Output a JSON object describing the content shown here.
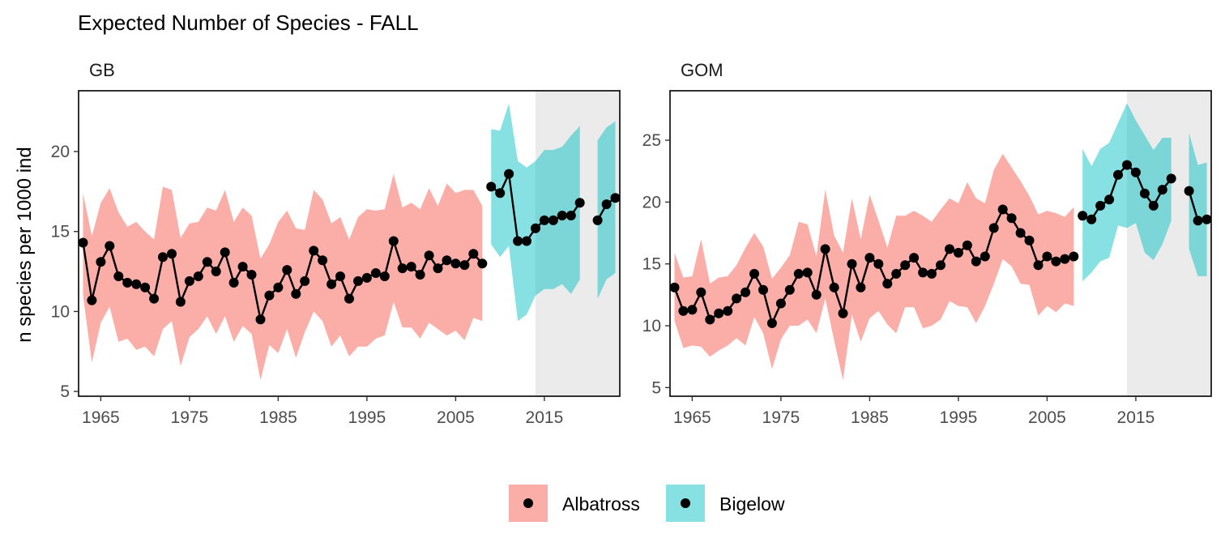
{
  "chart_data": {
    "type": "line",
    "title": "Expected Number of Species - FALL",
    "ylabel": "n species per 1000 ind",
    "xlabel": "",
    "legend": {
      "position": "bottom",
      "entries": [
        {
          "name": "Albatross",
          "color": "#F8766D"
        },
        {
          "name": "Bigelow",
          "color": "#00BFC4"
        }
      ]
    },
    "colors": {
      "Albatross": "#F8766D",
      "Bigelow": "#00BFC4",
      "line": "#000000",
      "shade": "#EBEBEB"
    },
    "panels": [
      {
        "name": "GB",
        "xlim": [
          1962.5,
          2023.5
        ],
        "ylim": [
          4.7,
          23.8
        ],
        "xticks": [
          1965,
          1975,
          1985,
          1995,
          2005,
          2015
        ],
        "yticks": [
          5,
          10,
          15,
          20
        ],
        "shaded_x": [
          2014,
          2023.5
        ],
        "segments": [
          {
            "series": "Albatross",
            "x": [
              1963,
              1964,
              1965,
              1966,
              1967,
              1968,
              1969,
              1970,
              1971,
              1972,
              1973,
              1974,
              1975,
              1976,
              1977,
              1978,
              1979,
              1980,
              1981,
              1982,
              1983,
              1984,
              1985,
              1986,
              1987,
              1988,
              1989,
              1990,
              1991,
              1992,
              1993,
              1994,
              1995,
              1996,
              1997,
              1998,
              1999,
              2000,
              2001,
              2002,
              2003,
              2004,
              2005,
              2006,
              2007,
              2008
            ],
            "y": [
              14.3,
              10.7,
              13.1,
              14.1,
              12.2,
              11.8,
              11.7,
              11.5,
              10.8,
              13.4,
              13.6,
              10.6,
              11.9,
              12.2,
              13.1,
              12.5,
              13.7,
              11.8,
              12.8,
              12.3,
              9.5,
              11.0,
              11.5,
              12.6,
              11.1,
              11.9,
              13.8,
              13.2,
              11.7,
              12.2,
              10.8,
              11.9,
              12.1,
              12.4,
              12.2,
              14.4,
              12.7,
              12.8,
              12.3,
              13.5,
              12.7,
              13.2,
              13.0,
              12.9,
              13.6,
              13.0
            ],
            "lower": [
              11.0,
              6.8,
              9.3,
              10.3,
              8.1,
              8.3,
              7.6,
              7.8,
              7.2,
              8.9,
              9.4,
              6.6,
              8.4,
              8.9,
              9.7,
              8.6,
              9.7,
              8.1,
              9.1,
              8.6,
              5.7,
              7.9,
              7.4,
              8.9,
              7.1,
              8.7,
              10.0,
              9.4,
              7.8,
              8.5,
              7.2,
              7.8,
              7.8,
              8.3,
              8.5,
              10.6,
              9.0,
              9.0,
              8.3,
              9.3,
              8.9,
              8.5,
              8.8,
              8.2,
              9.6,
              9.4
            ],
            "upper": [
              17.4,
              14.7,
              16.8,
              17.7,
              16.2,
              15.3,
              15.6,
              15.0,
              14.5,
              17.8,
              17.6,
              14.6,
              15.5,
              15.6,
              16.5,
              16.3,
              17.6,
              15.6,
              16.5,
              16.0,
              13.3,
              14.2,
              15.6,
              16.3,
              15.2,
              15.1,
              17.6,
              17.0,
              15.5,
              15.9,
              14.5,
              15.9,
              16.4,
              16.3,
              16.4,
              18.6,
              16.5,
              16.8,
              16.4,
              17.7,
              16.6,
              18.0,
              17.4,
              17.6,
              17.6,
              16.6
            ]
          },
          {
            "series": "Bigelow",
            "x": [
              2009,
              2010,
              2011,
              2012,
              2013,
              2014,
              2015,
              2016,
              2017,
              2018,
              2019
            ],
            "y": [
              17.8,
              17.4,
              18.6,
              14.4,
              14.4,
              15.2,
              15.7,
              15.7,
              16.0,
              16.0,
              16.8
            ],
            "lower": [
              14.2,
              13.4,
              14.1,
              9.4,
              9.8,
              11.0,
              11.4,
              11.4,
              11.7,
              11.1,
              12.0
            ],
            "upper": [
              21.4,
              21.3,
              23.0,
              19.4,
              19.0,
              19.4,
              20.1,
              20.1,
              20.3,
              21.0,
              21.6
            ]
          },
          {
            "series": "Bigelow",
            "x": [
              2021,
              2022,
              2023
            ],
            "y": [
              15.7,
              16.7,
              17.1
            ],
            "lower": [
              10.8,
              12.0,
              12.4
            ],
            "upper": [
              20.7,
              21.5,
              21.9
            ]
          }
        ]
      },
      {
        "name": "GOM",
        "xlim": [
          1962.5,
          2023.5
        ],
        "ylim": [
          4.3,
          29.0
        ],
        "xticks": [
          1965,
          1975,
          1985,
          1995,
          2005,
          2015
        ],
        "yticks": [
          5,
          10,
          15,
          20,
          25
        ],
        "shaded_x": [
          2014,
          2023.5
        ],
        "segments": [
          {
            "series": "Albatross",
            "x": [
              1963,
              1964,
              1965,
              1966,
              1967,
              1968,
              1969,
              1970,
              1971,
              1972,
              1973,
              1974,
              1975,
              1976,
              1977,
              1978,
              1979,
              1980,
              1981,
              1982,
              1983,
              1984,
              1985,
              1986,
              1987,
              1988,
              1989,
              1990,
              1991,
              1992,
              1993,
              1994,
              1995,
              1996,
              1997,
              1998,
              1999,
              2000,
              2001,
              2002,
              2003,
              2004,
              2005,
              2006,
              2007,
              2008
            ],
            "y": [
              13.1,
              11.2,
              11.3,
              12.7,
              10.5,
              11.0,
              11.2,
              12.2,
              12.7,
              14.2,
              12.9,
              10.2,
              11.8,
              12.9,
              14.2,
              14.3,
              12.5,
              16.2,
              13.1,
              11.0,
              15.0,
              13.1,
              15.5,
              15.0,
              13.4,
              14.2,
              14.9,
              15.5,
              14.3,
              14.2,
              14.9,
              16.2,
              15.9,
              16.5,
              15.2,
              15.6,
              17.9,
              19.4,
              18.7,
              17.5,
              16.9,
              14.9,
              15.6,
              15.2,
              15.4,
              15.6
            ],
            "lower": [
              10.4,
              8.2,
              8.4,
              8.3,
              7.5,
              8.0,
              8.4,
              9.0,
              8.4,
              10.7,
              9.4,
              6.5,
              8.9,
              10.0,
              10.0,
              10.5,
              9.4,
              12.2,
              8.8,
              5.6,
              10.9,
              8.7,
              10.6,
              11.2,
              10.1,
              9.4,
              11.5,
              11.5,
              9.8,
              10.0,
              10.5,
              12.0,
              11.6,
              11.5,
              10.2,
              11.6,
              13.4,
              15.4,
              14.8,
              13.4,
              13.3,
              10.8,
              11.6,
              11.1,
              11.8,
              11.6
            ],
            "upper": [
              15.9,
              13.9,
              14.0,
              17.0,
              13.4,
              13.9,
              14.0,
              14.9,
              16.3,
              17.5,
              16.4,
              13.8,
              14.7,
              15.7,
              18.4,
              18.2,
              15.6,
              21.0,
              17.3,
              15.9,
              20.3,
              17.0,
              20.6,
              18.5,
              16.3,
              18.9,
              18.9,
              19.3,
              18.9,
              18.4,
              19.4,
              20.3,
              19.9,
              21.6,
              20.3,
              19.9,
              22.6,
              23.9,
              22.8,
              21.7,
              20.5,
              19.0,
              19.3,
              19.1,
              18.8,
              19.6
            ]
          },
          {
            "series": "Bigelow",
            "x": [
              2009,
              2010,
              2011,
              2012,
              2013,
              2014,
              2015,
              2016,
              2017,
              2018,
              2019
            ],
            "y": [
              18.9,
              18.6,
              19.7,
              20.2,
              22.2,
              23.0,
              22.4,
              20.7,
              19.7,
              21.0,
              21.9
            ],
            "lower": [
              13.6,
              14.3,
              15.2,
              15.5,
              18.1,
              17.9,
              18.3,
              15.9,
              15.3,
              16.6,
              18.5
            ],
            "upper": [
              24.3,
              22.9,
              24.3,
              24.8,
              26.4,
              28.0,
              26.6,
              25.4,
              24.2,
              25.2,
              25.2
            ]
          },
          {
            "series": "Bigelow",
            "x": [
              2021,
              2022,
              2023
            ],
            "y": [
              20.9,
              18.5,
              18.6
            ],
            "lower": [
              16.2,
              14.0,
              14.0
            ],
            "upper": [
              25.6,
              23.0,
              23.2
            ]
          }
        ]
      }
    ]
  }
}
